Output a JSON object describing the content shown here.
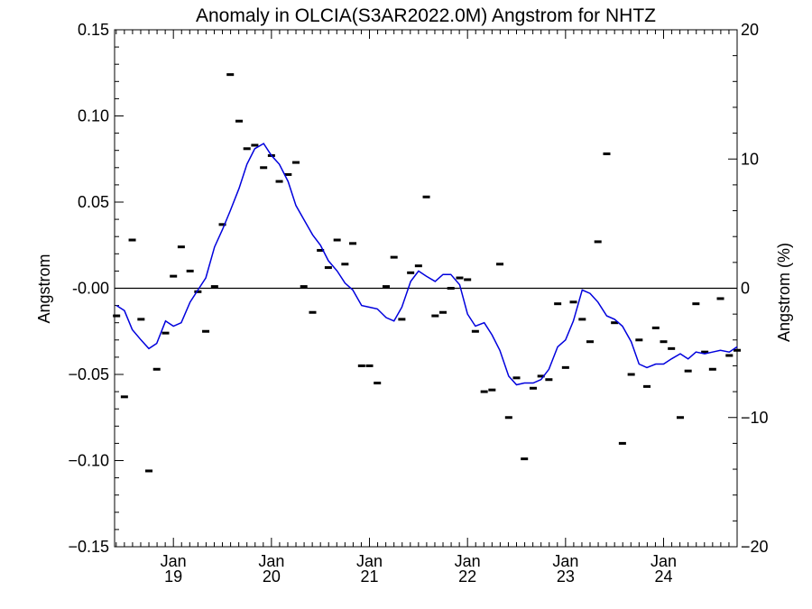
{
  "chart_data": {
    "type": "scatter",
    "title": "Anomaly in OLCIA(S3AR2022.0M) Angstrom for NHTZ",
    "ylabel": "Angstrom",
    "ylabel_right": "Angstrom (%)",
    "ylim": [
      -0.15,
      0.15
    ],
    "ylim_right": [
      -20,
      20
    ],
    "xlim": [
      2018.4,
      2024.75
    ],
    "y_ticks": [
      {
        "v": 0.15,
        "label": "0.15"
      },
      {
        "v": 0.1,
        "label": "0.10"
      },
      {
        "v": 0.05,
        "label": "0.05"
      },
      {
        "v": 0.0,
        "label": "-0.00"
      },
      {
        "v": -0.05,
        "label": "−0.05"
      },
      {
        "v": -0.1,
        "label": "−0.10"
      },
      {
        "v": -0.15,
        "label": "−0.15"
      }
    ],
    "y_right_ticks": [
      {
        "v": 20,
        "label": "20"
      },
      {
        "v": 10,
        "label": "10"
      },
      {
        "v": 0,
        "label": "0"
      },
      {
        "v": -10,
        "label": "−10"
      },
      {
        "v": -20,
        "label": "−20"
      }
    ],
    "x_ticks": [
      {
        "v": 2019.0,
        "month": "Jan",
        "year": "19"
      },
      {
        "v": 2020.0,
        "month": "Jan",
        "year": "20"
      },
      {
        "v": 2021.0,
        "month": "Jan",
        "year": "21"
      },
      {
        "v": 2022.0,
        "month": "Jan",
        "year": "22"
      },
      {
        "v": 2023.0,
        "month": "Jan",
        "year": "23"
      },
      {
        "v": 2024.0,
        "month": "Jan",
        "year": "24"
      }
    ],
    "zero_line": 0,
    "colors": {
      "line": "#0000dd",
      "points": "#000000",
      "axes": "#000000"
    },
    "series": [
      {
        "kind": "points",
        "x": [
          2018.42,
          2018.5,
          2018.58,
          2018.67,
          2018.75,
          2018.83,
          2018.92,
          2019.0,
          2019.08,
          2019.17,
          2019.25,
          2019.33,
          2019.42,
          2019.5,
          2019.58,
          2019.67,
          2019.75,
          2019.83,
          2019.92,
          2020.0,
          2020.08,
          2020.17,
          2020.25,
          2020.33,
          2020.42,
          2020.5,
          2020.58,
          2020.67,
          2020.75,
          2020.83,
          2020.92,
          2021.0,
          2021.08,
          2021.17,
          2021.25,
          2021.33,
          2021.42,
          2021.5,
          2021.58,
          2021.67,
          2021.75,
          2021.83,
          2021.92,
          2022.0,
          2022.08,
          2022.17,
          2022.25,
          2022.33,
          2022.42,
          2022.5,
          2022.58,
          2022.67,
          2022.75,
          2022.83,
          2022.92,
          2023.0,
          2023.08,
          2023.17,
          2023.25,
          2023.33,
          2023.42,
          2023.5,
          2023.58,
          2023.67,
          2023.75,
          2023.83,
          2023.92,
          2024.0,
          2024.08,
          2024.17,
          2024.25,
          2024.33,
          2024.42,
          2024.5,
          2024.58,
          2024.67,
          2024.75
        ],
        "y": [
          -0.016,
          -0.063,
          0.028,
          -0.018,
          -0.106,
          -0.047,
          -0.026,
          0.007,
          0.024,
          0.01,
          -0.002,
          -0.025,
          0.001,
          0.037,
          0.124,
          0.097,
          0.081,
          0.083,
          0.07,
          0.077,
          0.062,
          0.066,
          0.073,
          0.001,
          -0.014,
          0.022,
          0.012,
          0.028,
          0.014,
          0.026,
          -0.045,
          -0.045,
          -0.055,
          0.001,
          0.018,
          -0.018,
          0.009,
          0.013,
          0.053,
          -0.016,
          -0.014,
          0.0,
          0.006,
          0.005,
          -0.025,
          -0.06,
          -0.059,
          0.014,
          -0.075,
          -0.052,
          -0.099,
          -0.058,
          -0.051,
          -0.053,
          -0.009,
          -0.046,
          -0.008,
          -0.018,
          -0.031,
          0.027,
          0.078,
          -0.02,
          -0.09,
          -0.05,
          -0.03,
          -0.057,
          -0.023,
          -0.031,
          -0.035,
          -0.075,
          -0.048,
          -0.009,
          -0.037,
          -0.047,
          -0.006,
          -0.039,
          -0.036
        ]
      },
      {
        "kind": "line",
        "x": [
          2018.42,
          2018.5,
          2018.58,
          2018.67,
          2018.75,
          2018.83,
          2018.92,
          2019.0,
          2019.08,
          2019.17,
          2019.25,
          2019.33,
          2019.42,
          2019.5,
          2019.58,
          2019.67,
          2019.75,
          2019.83,
          2019.92,
          2020.0,
          2020.08,
          2020.17,
          2020.25,
          2020.33,
          2020.42,
          2020.5,
          2020.58,
          2020.67,
          2020.75,
          2020.83,
          2020.92,
          2021.0,
          2021.08,
          2021.17,
          2021.25,
          2021.33,
          2021.42,
          2021.5,
          2021.58,
          2021.67,
          2021.75,
          2021.83,
          2021.92,
          2022.0,
          2022.08,
          2022.17,
          2022.25,
          2022.33,
          2022.42,
          2022.5,
          2022.58,
          2022.67,
          2022.75,
          2022.83,
          2022.92,
          2023.0,
          2023.08,
          2023.17,
          2023.25,
          2023.33,
          2023.42,
          2023.5,
          2023.58,
          2023.67,
          2023.75,
          2023.83,
          2023.92,
          2024.0,
          2024.08,
          2024.17,
          2024.25,
          2024.33,
          2024.42,
          2024.5,
          2024.58,
          2024.67,
          2024.75
        ],
        "y": [
          -0.01,
          -0.013,
          -0.024,
          -0.03,
          -0.035,
          -0.032,
          -0.019,
          -0.022,
          -0.02,
          -0.008,
          -0.001,
          0.006,
          0.024,
          0.034,
          0.045,
          0.058,
          0.072,
          0.081,
          0.084,
          0.077,
          0.072,
          0.062,
          0.048,
          0.04,
          0.031,
          0.025,
          0.016,
          0.01,
          0.003,
          -0.001,
          -0.01,
          -0.011,
          -0.012,
          -0.017,
          -0.019,
          -0.011,
          0.004,
          0.01,
          0.007,
          0.004,
          0.008,
          0.008,
          0.002,
          -0.015,
          -0.022,
          -0.02,
          -0.027,
          -0.036,
          -0.051,
          -0.056,
          -0.055,
          -0.055,
          -0.053,
          -0.047,
          -0.034,
          -0.03,
          -0.019,
          -0.001,
          -0.003,
          -0.008,
          -0.016,
          -0.018,
          -0.022,
          -0.031,
          -0.044,
          -0.046,
          -0.044,
          -0.044,
          -0.041,
          -0.038,
          -0.041,
          -0.037,
          -0.038,
          -0.037,
          -0.036,
          -0.037,
          -0.034
        ]
      }
    ]
  }
}
